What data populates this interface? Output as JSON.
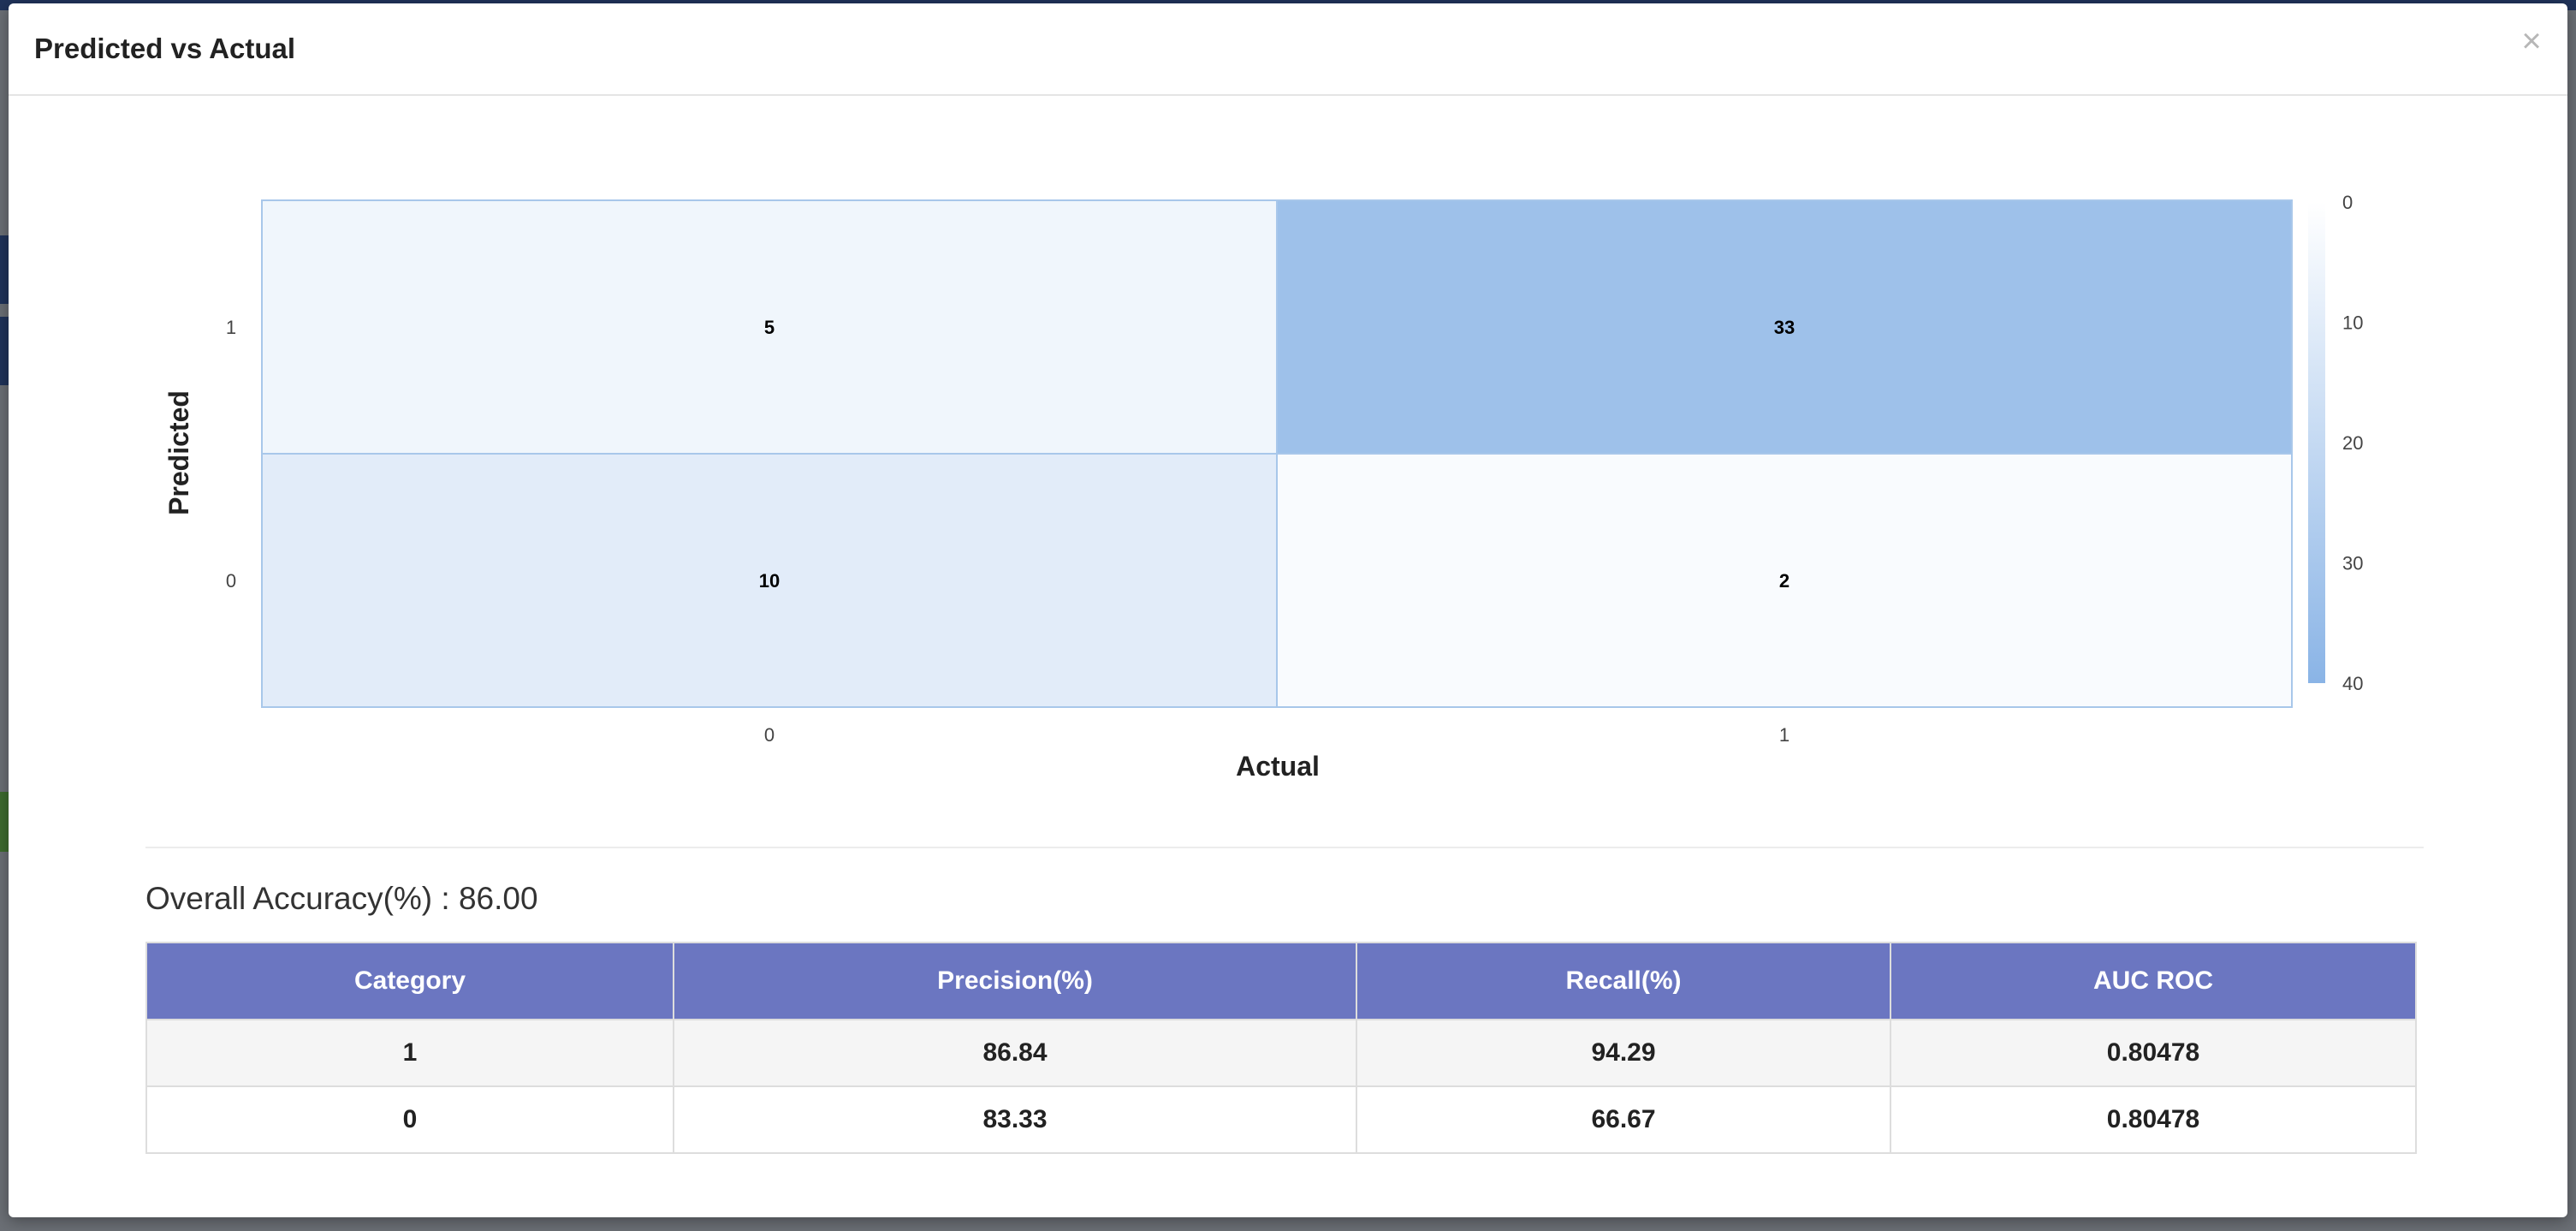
{
  "modal": {
    "title": "Predicted vs Actual",
    "close_label": "×"
  },
  "chart_data": {
    "type": "heatmap",
    "xlabel": "Actual",
    "ylabel": "Predicted",
    "x_categories": [
      "0",
      "1"
    ],
    "y_categories": [
      "1",
      "0"
    ],
    "cells": [
      {
        "predicted": "1",
        "actual": "0",
        "value": 5
      },
      {
        "predicted": "1",
        "actual": "1",
        "value": 33
      },
      {
        "predicted": "0",
        "actual": "0",
        "value": 10
      },
      {
        "predicted": "0",
        "actual": "1",
        "value": 2
      }
    ],
    "colorbar": {
      "min": 0,
      "max": 40,
      "ticks": [
        "0",
        "10",
        "20",
        "30",
        "40"
      ]
    },
    "colors": {
      "low": "#ffffff",
      "high": "#8ab4e6",
      "border": "#a8c7ea"
    }
  },
  "metrics": {
    "accuracy_label": "Overall Accuracy(%) :",
    "accuracy_value": "86.00",
    "headers": [
      "Category",
      "Precision(%)",
      "Recall(%)",
      "AUC ROC"
    ],
    "rows": [
      [
        "1",
        "86.84",
        "94.29",
        "0.80478"
      ],
      [
        "0",
        "83.33",
        "66.67",
        "0.80478"
      ]
    ],
    "header_color": "#6b76c1"
  }
}
